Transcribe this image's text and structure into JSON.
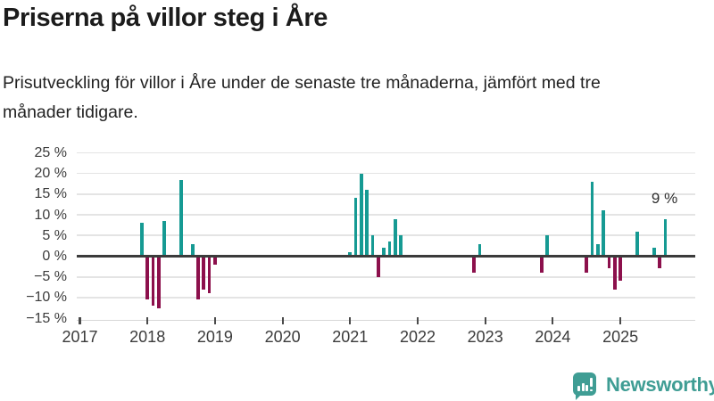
{
  "header": {
    "title": "Priserna på villor steg i Åre",
    "subtitle": "Prisutveckling för villor i Åre under de senaste tre månaderna, jämfört med tre månader tidigare."
  },
  "annotation": {
    "label": "9 %"
  },
  "branding": {
    "name": "Newsworthy",
    "icon": "newsworthy-speech-bubble-bar-chart-icon"
  },
  "colors": {
    "positive_bar": "#169a93",
    "negative_bar": "#8c104c",
    "brand_teal": "#3f9d94",
    "grid": "#e4e4e4",
    "zero_line": "#3b3b3b",
    "axis_text": "#3b3b3b"
  },
  "chart_data": {
    "type": "bar",
    "unit": "%",
    "ylim": [
      -15,
      25
    ],
    "grid": true,
    "legend": "none",
    "yticks": [
      {
        "value": 25,
        "label": "25 %"
      },
      {
        "value": 20,
        "label": "20 %"
      },
      {
        "value": 15,
        "label": "15 %"
      },
      {
        "value": 10,
        "label": "10 %"
      },
      {
        "value": 5,
        "label": "5 %"
      },
      {
        "value": 0,
        "label": "0 %"
      },
      {
        "value": -5,
        "label": "−5 %"
      },
      {
        "value": -10,
        "label": "−10 %"
      },
      {
        "value": -15,
        "label": "−15 %"
      }
    ],
    "xticks": [
      {
        "value": 2017,
        "label": "2017"
      },
      {
        "value": 2018,
        "label": "2018"
      },
      {
        "value": 2019,
        "label": "2019"
      },
      {
        "value": 2020,
        "label": "2020"
      },
      {
        "value": 2021,
        "label": "2021"
      },
      {
        "value": 2022,
        "label": "2022"
      },
      {
        "value": 2023,
        "label": "2023"
      },
      {
        "value": 2024,
        "label": "2024"
      },
      {
        "value": 2025,
        "label": "2025"
      }
    ],
    "points": [
      {
        "month": "2017-12",
        "value": 8
      },
      {
        "month": "2018-01",
        "value": -10.5
      },
      {
        "month": "2018-02",
        "value": -12
      },
      {
        "month": "2018-03",
        "value": -12.5
      },
      {
        "month": "2018-04",
        "value": 8.5
      },
      {
        "month": "2018-07",
        "value": 18.5
      },
      {
        "month": "2018-09",
        "value": 3
      },
      {
        "month": "2018-10",
        "value": -10.5
      },
      {
        "month": "2018-11",
        "value": -8
      },
      {
        "month": "2018-12",
        "value": -9
      },
      {
        "month": "2019-01",
        "value": -2
      },
      {
        "month": "2021-01",
        "value": 1
      },
      {
        "month": "2021-02",
        "value": 14
      },
      {
        "month": "2021-03",
        "value": 20
      },
      {
        "month": "2021-04",
        "value": 16
      },
      {
        "month": "2021-05",
        "value": 5
      },
      {
        "month": "2021-06",
        "value": -5
      },
      {
        "month": "2021-07",
        "value": 2
      },
      {
        "month": "2021-08",
        "value": 3.5
      },
      {
        "month": "2021-09",
        "value": 9
      },
      {
        "month": "2021-10",
        "value": 5
      },
      {
        "month": "2022-11",
        "value": -4
      },
      {
        "month": "2022-12",
        "value": 3
      },
      {
        "month": "2023-11",
        "value": -4
      },
      {
        "month": "2023-12",
        "value": 5
      },
      {
        "month": "2024-07",
        "value": -4
      },
      {
        "month": "2024-08",
        "value": 18
      },
      {
        "month": "2024-09",
        "value": 3
      },
      {
        "month": "2024-10",
        "value": 11
      },
      {
        "month": "2024-11",
        "value": -3
      },
      {
        "month": "2024-12",
        "value": -8
      },
      {
        "month": "2025-01",
        "value": -6
      },
      {
        "month": "2025-04",
        "value": 6
      },
      {
        "month": "2025-07",
        "value": 2
      },
      {
        "month": "2025-08",
        "value": -3
      },
      {
        "month": "2025-09",
        "value": 9
      }
    ],
    "annotated_point": {
      "month": "2025-09",
      "value": 9,
      "label": "9 %"
    }
  }
}
